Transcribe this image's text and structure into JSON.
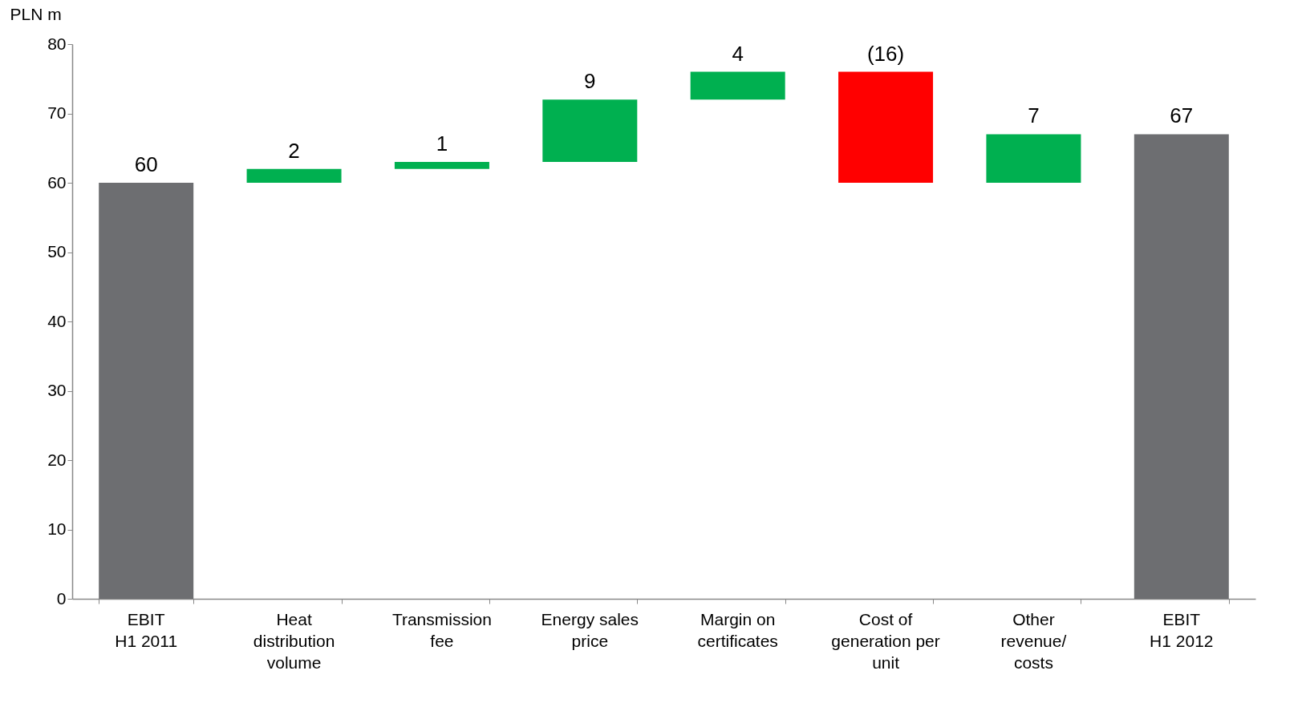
{
  "chart_data": {
    "type": "bar",
    "ylabel": "PLN m",
    "categories": [
      "EBIT\nH1 2011",
      "Heat\ndistribution\nvolume",
      "Transmission\nfee",
      "Energy sales\nprice",
      "Margin on\ncertificates",
      "Cost of\ngeneration per\nunit",
      "Other\nrevenue/\ncosts",
      "EBIT\nH1 2012"
    ],
    "values": [
      60,
      2,
      1,
      9,
      4,
      -16,
      7,
      67
    ],
    "base": [
      0,
      60,
      62,
      63,
      72,
      76,
      60,
      0
    ],
    "colors": [
      "#6d6e71",
      "#00b050",
      "#00b050",
      "#00b050",
      "#00b050",
      "#ff0000",
      "#00b050",
      "#6d6e71"
    ],
    "value_labels": [
      "60",
      "2",
      "1",
      "9",
      "4",
      "(16)",
      "7",
      "67"
    ],
    "ylim": [
      0,
      80
    ],
    "yticks": [
      0,
      10,
      20,
      30,
      40,
      50,
      60,
      70,
      80
    ],
    "grid": false
  }
}
